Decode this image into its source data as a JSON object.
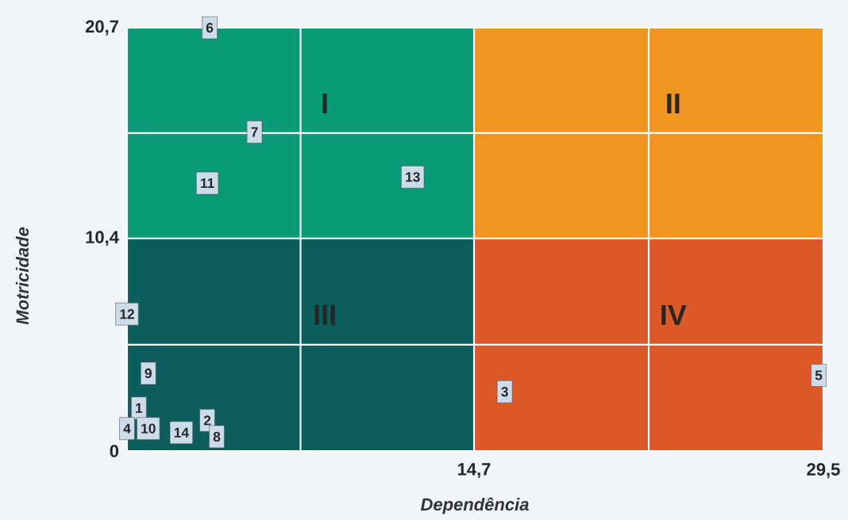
{
  "chart_data": {
    "type": "scatter",
    "xlabel": "Dependência",
    "ylabel": "Motricidade",
    "xlim": [
      0,
      29.5
    ],
    "ylim": [
      0,
      20.7
    ],
    "xticks": [
      {
        "value": 0,
        "label": null
      },
      {
        "value": 7.35,
        "label": null
      },
      {
        "value": 14.7,
        "label": "14,7"
      },
      {
        "value": 22.1,
        "label": null
      },
      {
        "value": 29.5,
        "label": "29,5"
      }
    ],
    "yticks": [
      {
        "value": 0,
        "label": "0"
      },
      {
        "value": 5.2,
        "label": null
      },
      {
        "value": 10.4,
        "label": "10,4"
      },
      {
        "value": 15.55,
        "label": null
      },
      {
        "value": 20.7,
        "label": "20,7"
      }
    ],
    "grid": true,
    "series": [
      {
        "type": "area",
        "color": "#079b77",
        "x": [
          0,
          14.7
        ],
        "values": [
          20.7,
          20.7
        ]
      },
      {
        "type": "area",
        "color": "#f09520",
        "x": [
          14.7,
          29.5
        ],
        "values": [
          20.7,
          20.7
        ]
      },
      {
        "type": "area",
        "color": "#0b5e5b",
        "x": [
          0,
          14.7
        ],
        "values": [
          10.4,
          10.4
        ]
      },
      {
        "type": "area",
        "color": "#dc5826",
        "x": [
          14.7,
          29.5
        ],
        "values": [
          10.4,
          10.4
        ]
      },
      {
        "name": "1",
        "color": "#cddcea",
        "marker": "square",
        "x": [
          0.5
        ],
        "values": [
          2.1
        ]
      },
      {
        "name": "2",
        "color": "#cddcea",
        "marker": "square",
        "x": [
          3.4
        ],
        "values": [
          1.5
        ]
      },
      {
        "name": "3",
        "color": "#cddcea",
        "marker": "square",
        "x": [
          16.0
        ],
        "values": [
          2.9
        ]
      },
      {
        "name": "4",
        "color": "#cddcea",
        "marker": "square",
        "x": [
          0
        ],
        "values": [
          1.1
        ]
      },
      {
        "name": "5",
        "color": "#cddcea",
        "marker": "square",
        "x": [
          29.3
        ],
        "values": [
          3.7
        ]
      },
      {
        "name": "6",
        "color": "#cddcea",
        "marker": "square",
        "x": [
          3.5
        ],
        "values": [
          20.7
        ]
      },
      {
        "name": "7",
        "color": "#cddcea",
        "marker": "square",
        "x": [
          5.4
        ],
        "values": [
          15.6
        ]
      },
      {
        "name": "8",
        "color": "#cddcea",
        "marker": "square",
        "x": [
          3.8
        ],
        "values": [
          0.7
        ]
      },
      {
        "name": "9",
        "color": "#cddcea",
        "marker": "square",
        "x": [
          0.9
        ],
        "values": [
          3.8
        ]
      },
      {
        "name": "10",
        "color": "#cddcea",
        "marker": "square",
        "x": [
          0.9
        ],
        "values": [
          1.1
        ]
      },
      {
        "name": "11",
        "color": "#cddcea",
        "marker": "square",
        "x": [
          3.4
        ],
        "values": [
          13.1
        ]
      },
      {
        "name": "12",
        "color": "#cddcea",
        "marker": "square",
        "x": [
          0
        ],
        "values": [
          6.7
        ]
      },
      {
        "name": "13",
        "color": "#cddcea",
        "marker": "square",
        "x": [
          12.1
        ],
        "values": [
          13.4
        ]
      },
      {
        "name": "14",
        "color": "#cddcea",
        "marker": "square",
        "x": [
          2.3
        ],
        "values": [
          0.9
        ]
      }
    ],
    "annotations": [
      "I",
      "II",
      "III",
      "IV"
    ]
  }
}
